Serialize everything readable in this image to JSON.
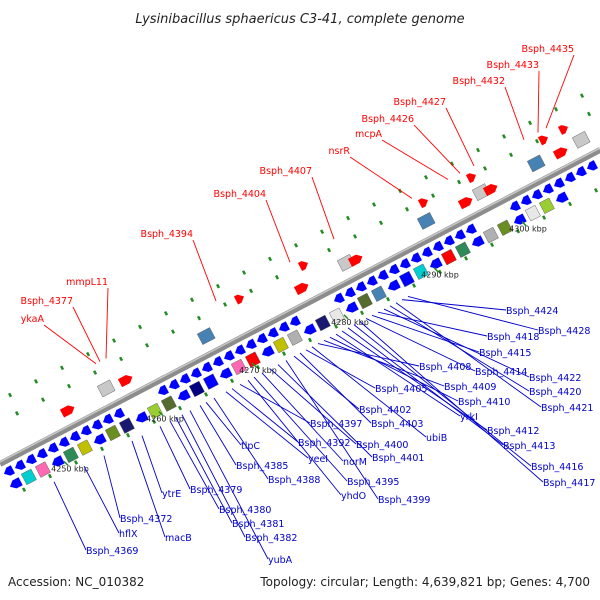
{
  "title": "Lysinibacillus sphaericus C3-41, complete genome",
  "footer": {
    "accession": "Accession: NC_010382",
    "topology": "Topology: circular; Length: 4,639,821 bp; Genes: 4,700"
  },
  "colors": {
    "upper_labels": "#ff0000",
    "lower_labels": "#0000cc",
    "backbone": "#8c8c8c"
  },
  "ticks": [
    "4250 kbp",
    "4260 kbp",
    "4270 kbp",
    "4280 kbp",
    "4290 kbp",
    "4300 kbp"
  ],
  "upper_labels": [
    "ykaA",
    "Bsph_4377",
    "mmpL11",
    "Bsph_4394",
    "Bsph_4404",
    "Bsph_4407",
    "nsrR",
    "mcpA",
    "Bsph_4426",
    "Bsph_4427",
    "Bsph_4432",
    "Bsph_4433",
    "Bsph_4435"
  ],
  "lower_labels": [
    "Bsph_4369",
    "hflX",
    "Bsph_4372",
    "macB",
    "ytrE",
    "Bsph_4379",
    "Bsph_4380",
    "Bsph_4381",
    "Bsph_4382",
    "yubA",
    "Bsph_4385",
    "tlpC",
    "Bsph_4388",
    "yeeI",
    "Bsph_4392",
    "Bsph_4397",
    "yhdO",
    "Bsph_4395",
    "norM",
    "Bsph_4400",
    "Bsph_4401",
    "Bsph_4399",
    "Bsph_4402",
    "Bsph_4403",
    "Bsph_4405",
    "ubiB",
    "Bsph_4408",
    "Bsph_4409",
    "Bsph_4410",
    "yrkI",
    "Bsph_4412",
    "Bsph_4413",
    "Bsph_4416",
    "Bsph_4417",
    "Bsph_4414",
    "Bsph_4415",
    "Bsph_4418",
    "Bsph_4422",
    "Bsph_4420",
    "Bsph_4421",
    "Bsph_4424",
    "Bsph_4428"
  ]
}
